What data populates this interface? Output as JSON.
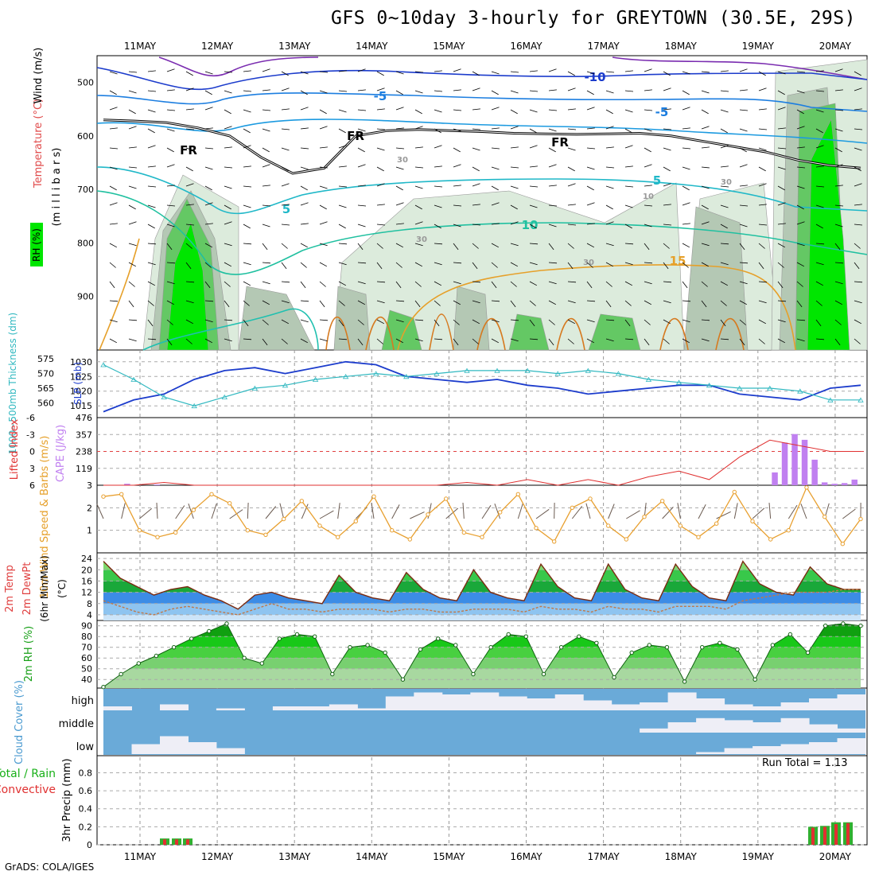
{
  "title": "GFS 0~10day 3-hourly for GREYTOWN (30.5E, 29S)",
  "credit": "GrADS: COLA/IGES",
  "run_total_label": "Run Total = 1.13",
  "colors": {
    "rh_light": "#dcebdc",
    "rh_mid": "#b4c8b4",
    "rh_green": "#64c864",
    "rh_bright": "#00e600",
    "temp_isotherm_warm": "#e6a02a",
    "temp_isotherm_cool": "#20c0c0",
    "temp_isotherm_cold": "#2080e0",
    "slp_line": "#1c3ccc",
    "thickness_line": "#30b8c0",
    "lifted_index": "#e03030",
    "cape_bar": "#c080f0",
    "wind_speed": "#e8a030",
    "temp_fill_high": "#1f9a3c",
    "dewpoint_fill": "#3c8ce6",
    "rh_fill": "#18c818",
    "cloud_fill": "#6aaad8",
    "cloud_clear": "#eeeef6",
    "precip_total": "#30b030",
    "precip_convective": "#e03030"
  },
  "chart_data": [
    {
      "panel": "upper-air",
      "type": "heatmap",
      "ylabels": [
        "Temperature (°C)",
        "Wind (m/s)",
        "(m i l l i b a r s)",
        "RH (%)"
      ],
      "y_ticks": [
        500,
        600,
        700,
        800,
        900
      ],
      "ylim": [
        1000,
        450
      ],
      "x_labels": [
        "11MAY",
        "12MAY",
        "13MAY",
        "14MAY",
        "15MAY",
        "16MAY",
        "17MAY",
        "18MAY",
        "19MAY",
        "20MAY"
      ],
      "contour_labels": [
        "-10",
        "-5",
        "-5",
        "5",
        "5",
        "10",
        "15",
        "FR",
        "FR",
        "FR",
        "30",
        "30",
        "30",
        "30",
        "10"
      ],
      "freezing_level_mb": [
        570,
        572,
        575,
        585,
        600,
        640,
        670,
        660,
        600,
        590,
        588,
        590,
        592,
        595,
        596,
        597,
        596,
        595,
        600,
        610,
        620,
        630,
        645,
        655,
        660
      ]
    },
    {
      "panel": "slp-thickness",
      "type": "line",
      "ylabel_left": "1000~500mb Thickness (dm)",
      "ylabel_right": "SLP (mb)",
      "left_ticks": [
        560,
        565,
        570,
        575
      ],
      "right_ticks": [
        1015,
        1020,
        1025,
        1030
      ],
      "series": [
        {
          "name": "SLP (mb)",
          "axis": "right",
          "values": [
            1013,
            1017,
            1019,
            1024,
            1027,
            1028,
            1026,
            1028,
            1030,
            1029,
            1025,
            1024,
            1023,
            1024,
            1022,
            1021,
            1019,
            1020,
            1021,
            1022,
            1022,
            1019,
            1018,
            1017,
            1021,
            1022
          ]
        },
        {
          "name": "1000~500mb Thickness (dm)",
          "axis": "left",
          "values": [
            573,
            568,
            562,
            559,
            562,
            565,
            566,
            568,
            569,
            570,
            569,
            570,
            571,
            571,
            571,
            570,
            571,
            570,
            568,
            567,
            566,
            565,
            565,
            564,
            561,
            561
          ]
        }
      ]
    },
    {
      "panel": "instability",
      "type": "bar",
      "ylabel_left": "Lifted Index",
      "ylabel_right": "CAPE (J/kg)",
      "left_ticks": [
        "-6",
        "-3",
        "0",
        "3",
        "6"
      ],
      "right_ticks": [
        "476",
        "357",
        "238",
        "119",
        "3"
      ],
      "series": [
        {
          "name": "Lifted Index",
          "axis": "left",
          "values": [
            6,
            6,
            5.5,
            6,
            6,
            6,
            6,
            6,
            6,
            6,
            6,
            6,
            5.5,
            6,
            5,
            6,
            5,
            6,
            4.5,
            3.5,
            5,
            1,
            -2,
            -1,
            0,
            0
          ]
        },
        {
          "name": "CAPE (J/kg)",
          "axis": "right",
          "values": [
            0,
            0,
            10,
            0,
            0,
            5,
            0,
            0,
            0,
            0,
            0,
            0,
            0,
            0,
            0,
            0,
            0,
            0,
            0,
            0,
            0,
            0,
            0,
            0,
            0,
            0,
            0,
            0,
            0,
            0,
            0,
            0,
            0,
            0,
            0,
            0,
            0,
            0,
            0,
            0,
            0,
            0,
            0,
            0,
            0,
            0,
            0,
            0,
            0,
            0,
            0,
            0,
            0,
            0,
            0,
            0,
            0,
            0,
            0,
            0,
            0,
            0,
            0,
            0,
            0,
            0,
            0,
            90,
            300,
            360,
            320,
            180,
            20,
            10,
            15,
            40
          ]
        }
      ]
    },
    {
      "panel": "wind",
      "type": "line",
      "ylabel": "10m Wind Speed & Barbs (m/s)",
      "y_ticks": [
        1,
        2
      ],
      "ylim": [
        0,
        3
      ],
      "series": [
        {
          "name": "10m Wind Speed",
          "values": [
            2.5,
            2.6,
            1.0,
            0.7,
            0.9,
            1.9,
            2.6,
            2.2,
            1.0,
            0.8,
            1.5,
            2.3,
            1.2,
            0.7,
            1.4,
            2.5,
            1.0,
            0.6,
            1.7,
            2.4,
            0.9,
            0.7,
            1.8,
            2.6,
            1.1,
            0.5,
            2.0,
            2.4,
            1.2,
            0.6,
            1.6,
            2.3,
            1.2,
            0.7,
            1.3,
            2.7,
            1.4,
            0.6,
            1.0,
            2.9,
            1.6,
            0.4,
            1.5
          ]
        }
      ]
    },
    {
      "panel": "temperature",
      "type": "area",
      "ylabel": "2m Temp 2m DewPt (6hr Min/Max) (°C)",
      "y_ticks": [
        4,
        8,
        12,
        16,
        20,
        24
      ],
      "ylim": [
        2,
        26
      ],
      "series": [
        {
          "name": "2m Temp",
          "values": [
            23,
            17,
            14,
            11,
            13,
            14,
            11,
            9,
            6,
            11,
            12,
            10,
            9,
            8,
            18,
            12,
            10,
            9,
            19,
            13,
            10,
            9,
            20,
            12,
            10,
            9,
            22,
            14,
            10,
            9,
            22,
            13,
            10,
            9,
            22,
            14,
            10,
            9,
            23,
            15,
            12,
            11,
            21,
            15,
            13,
            13
          ]
        },
        {
          "name": "2m DewPt",
          "values": [
            9,
            7,
            5,
            4,
            6,
            7,
            6,
            5,
            4,
            6,
            8,
            6,
            6,
            5,
            6,
            6,
            6,
            5,
            6,
            6,
            5,
            5,
            6,
            6,
            6,
            5,
            7,
            6,
            6,
            5,
            7,
            6,
            6,
            5,
            7,
            7,
            7,
            6,
            9,
            10,
            11,
            12,
            12,
            12,
            13,
            13
          ]
        }
      ]
    },
    {
      "panel": "rh",
      "type": "area",
      "ylabel": "2m RH (%)",
      "y_ticks": [
        40,
        50,
        60,
        70,
        80,
        90
      ],
      "ylim": [
        32,
        95
      ],
      "series": [
        {
          "name": "2m RH",
          "values": [
            33,
            45,
            55,
            62,
            70,
            78,
            85,
            92,
            60,
            55,
            78,
            82,
            80,
            45,
            70,
            72,
            65,
            40,
            68,
            78,
            72,
            45,
            70,
            82,
            80,
            45,
            70,
            80,
            74,
            42,
            65,
            72,
            70,
            38,
            70,
            74,
            68,
            40,
            72,
            82,
            65,
            90,
            92,
            90
          ]
        }
      ]
    },
    {
      "panel": "cloud",
      "type": "heatmap",
      "ylabel": "Cloud Cover (%)",
      "levels": [
        "high",
        "middle",
        "low"
      ],
      "series": [
        {
          "name": "high",
          "values": [
            0.2,
            0,
            0.3,
            0,
            0.1,
            0,
            0.2,
            0.2,
            0.3,
            0.1,
            0.7,
            0.9,
            0.8,
            0.9,
            0.7,
            0.6,
            0.8,
            0.5,
            0.3,
            0.4,
            0.9,
            0.6,
            0.3,
            0.2,
            0.4,
            0.6,
            0.8
          ]
        },
        {
          "name": "middle",
          "values": [
            0,
            0,
            0,
            0,
            0,
            0,
            0,
            0,
            0,
            0,
            0,
            0,
            0,
            0,
            0,
            0,
            0,
            0,
            0,
            0.2,
            0.5,
            0.7,
            0.6,
            0.5,
            0.7,
            0.4,
            0.2
          ]
        },
        {
          "name": "low",
          "values": [
            0,
            0.5,
            0.9,
            0.6,
            0.3,
            0,
            0,
            0,
            0,
            0,
            0,
            0,
            0,
            0,
            0,
            0,
            0,
            0,
            0,
            0,
            0,
            0.1,
            0.3,
            0.4,
            0.5,
            0.6,
            0.8
          ]
        }
      ]
    },
    {
      "panel": "precip",
      "type": "bar",
      "ylabel": "3hr Precip (mm)",
      "legend": [
        "Total / Rain",
        "Convective"
      ],
      "y_ticks": [
        0,
        0.2,
        0.4,
        0.6,
        0.8
      ],
      "ylim": [
        0,
        0.99
      ],
      "series": [
        {
          "name": "Total / Rain",
          "values": [
            0.07,
            0.07,
            0.07,
            0,
            0,
            0,
            0,
            0.2,
            0.21,
            0.25,
            0.25
          ]
        },
        {
          "name": "Convective",
          "values": [
            0.06,
            0.06,
            0.06,
            0,
            0,
            0,
            0,
            0.19,
            0.2,
            0.23,
            0.24
          ]
        }
      ]
    }
  ]
}
